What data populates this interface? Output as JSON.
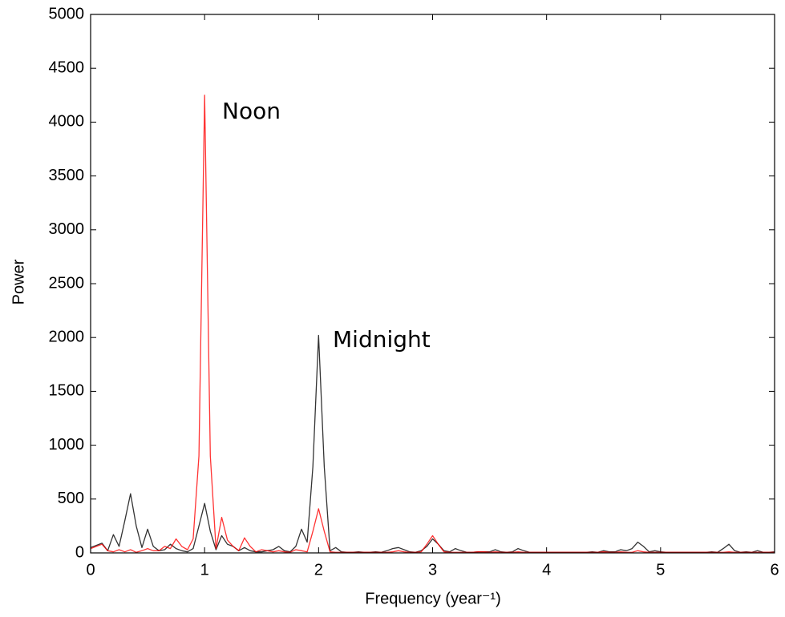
{
  "chart_data": {
    "type": "line",
    "x_label": "Frequency (year⁻¹)",
    "y_label": "Power",
    "annotations": [
      {
        "text": "Noon",
        "color": "#e00000"
      },
      {
        "text": "Midnight",
        "color": "#5b9bd5"
      }
    ],
    "x": [
      0,
      0.05,
      0.1,
      0.15,
      0.2,
      0.25,
      0.3,
      0.35,
      0.4,
      0.45,
      0.5,
      0.55,
      0.6,
      0.65,
      0.7,
      0.75,
      0.8,
      0.85,
      0.9,
      0.95,
      1,
      1.05,
      1.1,
      1.15,
      1.2,
      1.25,
      1.3,
      1.35,
      1.4,
      1.45,
      1.5,
      1.55,
      1.6,
      1.65,
      1.7,
      1.75,
      1.8,
      1.85,
      1.9,
      1.95,
      2,
      2.05,
      2.1,
      2.15,
      2.2,
      2.25,
      2.3,
      2.35,
      2.4,
      2.45,
      2.5,
      2.55,
      2.6,
      2.65,
      2.7,
      2.75,
      2.8,
      2.85,
      2.9,
      2.95,
      3,
      3.05,
      3.1,
      3.15,
      3.2,
      3.25,
      3.3,
      3.35,
      3.4,
      3.45,
      3.5,
      3.55,
      3.6,
      3.65,
      3.7,
      3.75,
      3.8,
      3.85,
      3.9,
      3.95,
      4,
      4.05,
      4.1,
      4.15,
      4.2,
      4.25,
      4.3,
      4.35,
      4.4,
      4.45,
      4.5,
      4.55,
      4.6,
      4.65,
      4.7,
      4.75,
      4.8,
      4.85,
      4.9,
      4.95,
      5,
      5.05,
      5.1,
      5.15,
      5.2,
      5.25,
      5.3,
      5.35,
      5.4,
      5.45,
      5.5,
      5.55,
      5.6,
      5.65,
      5.7,
      5.75,
      5.8,
      5.85,
      5.9,
      5.95,
      6
    ],
    "series": [
      {
        "color": "#000000",
        "values": [
          50,
          70,
          90,
          20,
          170,
          60,
          300,
          550,
          250,
          50,
          220,
          60,
          20,
          30,
          80,
          40,
          20,
          10,
          40,
          250,
          460,
          200,
          30,
          160,
          80,
          60,
          20,
          50,
          20,
          10,
          10,
          20,
          30,
          60,
          20,
          10,
          60,
          220,
          100,
          800,
          2020,
          800,
          20,
          50,
          10,
          5,
          5,
          10,
          5,
          5,
          10,
          5,
          20,
          40,
          50,
          30,
          10,
          5,
          20,
          60,
          130,
          80,
          20,
          10,
          40,
          20,
          5,
          5,
          10,
          10,
          10,
          30,
          10,
          5,
          10,
          40,
          20,
          5,
          5,
          5,
          5,
          5,
          5,
          5,
          5,
          5,
          5,
          5,
          10,
          5,
          20,
          10,
          10,
          30,
          20,
          40,
          100,
          60,
          10,
          20,
          10,
          5,
          5,
          5,
          5,
          5,
          5,
          5,
          5,
          10,
          5,
          40,
          80,
          20,
          5,
          10,
          5,
          20,
          5,
          5,
          10
        ]
      },
      {
        "color": "#ff0000",
        "values": [
          40,
          60,
          80,
          20,
          10,
          30,
          10,
          30,
          5,
          20,
          40,
          20,
          20,
          60,
          40,
          130,
          60,
          30,
          130,
          900,
          4250,
          900,
          40,
          330,
          120,
          60,
          20,
          140,
          60,
          10,
          30,
          20,
          10,
          20,
          10,
          5,
          30,
          20,
          10,
          200,
          410,
          200,
          10,
          5,
          5,
          5,
          5,
          5,
          5,
          5,
          5,
          5,
          5,
          10,
          20,
          10,
          5,
          5,
          10,
          80,
          160,
          80,
          10,
          5,
          5,
          5,
          5,
          5,
          10,
          10,
          5,
          10,
          5,
          5,
          5,
          10,
          5,
          5,
          5,
          5,
          5,
          5,
          5,
          5,
          5,
          5,
          5,
          5,
          5,
          5,
          10,
          5,
          5,
          10,
          5,
          5,
          20,
          10,
          5,
          5,
          5,
          5,
          5,
          5,
          5,
          5,
          5,
          5,
          5,
          5,
          5,
          5,
          10,
          5,
          5,
          5,
          5,
          5,
          5,
          5,
          5
        ]
      }
    ],
    "xlim": [
      0,
      6
    ],
    "xticks": [
      0,
      1,
      2,
      3,
      4,
      5,
      6
    ],
    "ylim": [
      0,
      5000
    ],
    "yticks": [
      0,
      500,
      1000,
      1500,
      2000,
      2500,
      3000,
      3500,
      4000,
      4500,
      5000
    ]
  }
}
